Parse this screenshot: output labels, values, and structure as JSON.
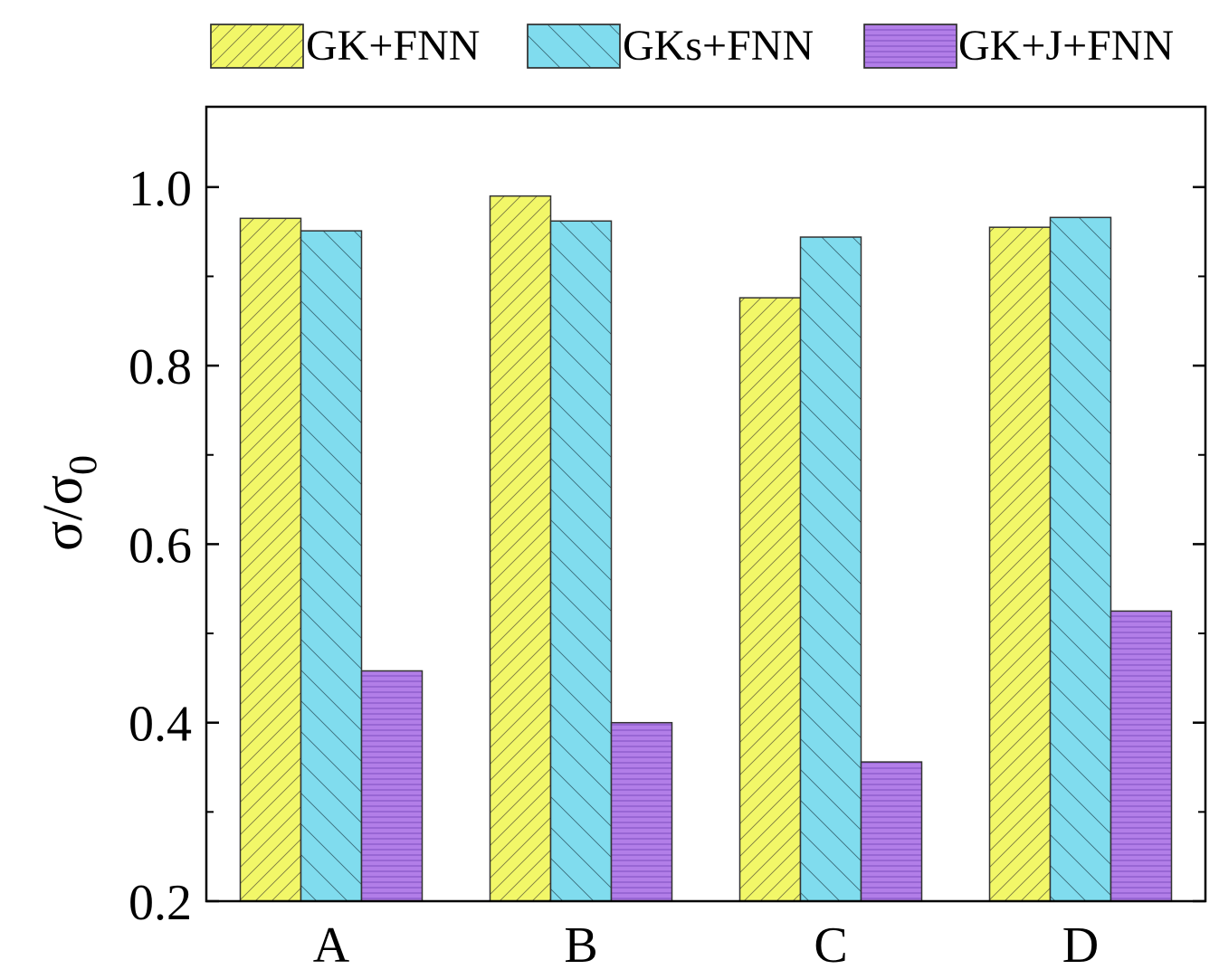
{
  "chart_data": {
    "type": "bar",
    "categories": [
      "A",
      "B",
      "C",
      "D"
    ],
    "series": [
      {
        "name": "GK+FNN",
        "values": [
          0.965,
          0.99,
          0.876,
          0.955
        ],
        "color": "#f2f768",
        "pattern": "diagonal-up"
      },
      {
        "name": "GKs+FNN",
        "values": [
          0.951,
          0.962,
          0.944,
          0.966
        ],
        "color": "#80dcee",
        "pattern": "diagonal-down"
      },
      {
        "name": "GK+J+FNN",
        "values": [
          0.458,
          0.4,
          0.356,
          0.525
        ],
        "color": "#b27ee8",
        "pattern": "horizontal"
      }
    ],
    "xlabel": "",
    "ylabel": "σ/σ0",
    "ylabel_main": "σ/σ",
    "ylabel_sub": "0",
    "ylim": [
      0.2,
      1.09
    ],
    "yticks": [
      0.2,
      0.4,
      0.6,
      0.8,
      1.0
    ],
    "ytick_labels": [
      "0.2",
      "0.4",
      "0.6",
      "0.8",
      "1.0"
    ],
    "minor_yticks": [
      0.3,
      0.5,
      0.7,
      0.9
    ],
    "grid": false,
    "legend_position": "top"
  }
}
